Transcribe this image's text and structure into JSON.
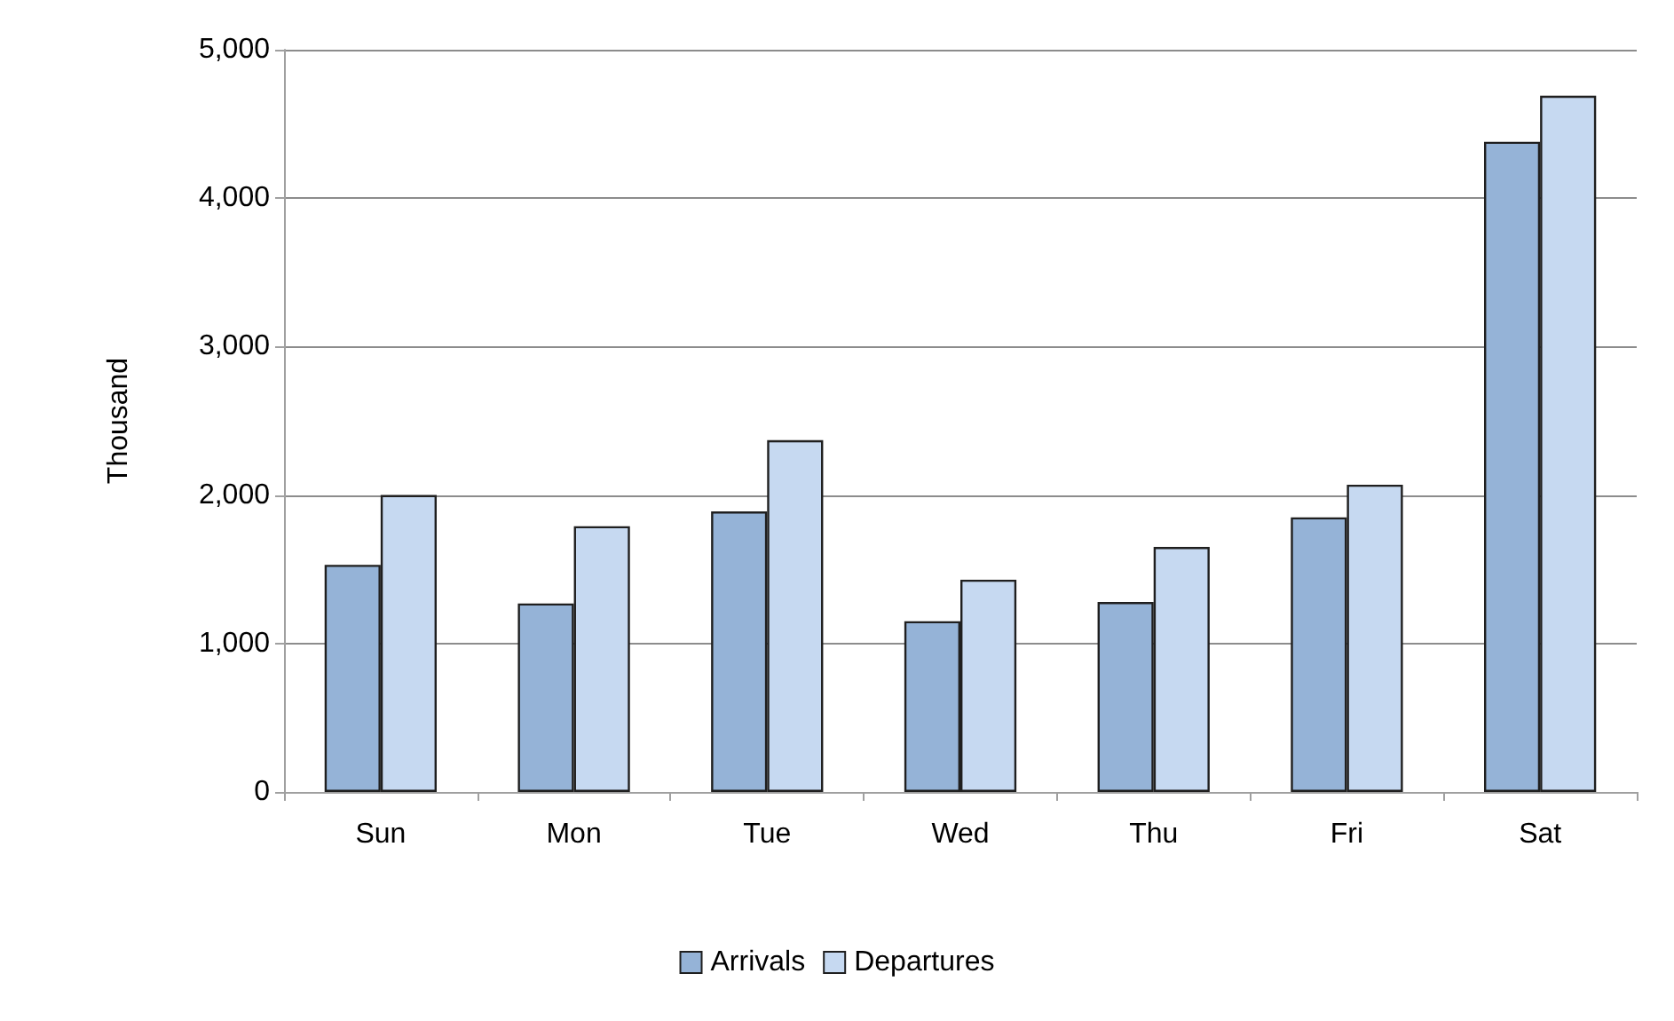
{
  "chart_data": {
    "type": "bar",
    "ylabel": "Thousand",
    "categories": [
      "Sun",
      "Mon",
      "Tue",
      "Wed",
      "Thu",
      "Fri",
      "Sat"
    ],
    "series": [
      {
        "name": "Arrivals",
        "color": "#95b3d7",
        "values": [
          1530,
          1270,
          1890,
          1150,
          1280,
          1850,
          4380
        ]
      },
      {
        "name": "Departures",
        "color": "#c6d9f1",
        "values": [
          2000,
          1790,
          2370,
          1430,
          1650,
          2070,
          4690
        ]
      }
    ],
    "ylim": [
      0,
      5000
    ],
    "yticks": [
      0,
      {
        "value": 1000,
        "label": "1,000"
      },
      {
        "value": 2000,
        "label": "2,000"
      },
      {
        "value": 3000,
        "label": "3,000"
      },
      {
        "value": 4000,
        "label": "4,000"
      },
      {
        "value": 5000,
        "label": "5,000"
      }
    ],
    "grid": "y",
    "legend": "bottom"
  }
}
